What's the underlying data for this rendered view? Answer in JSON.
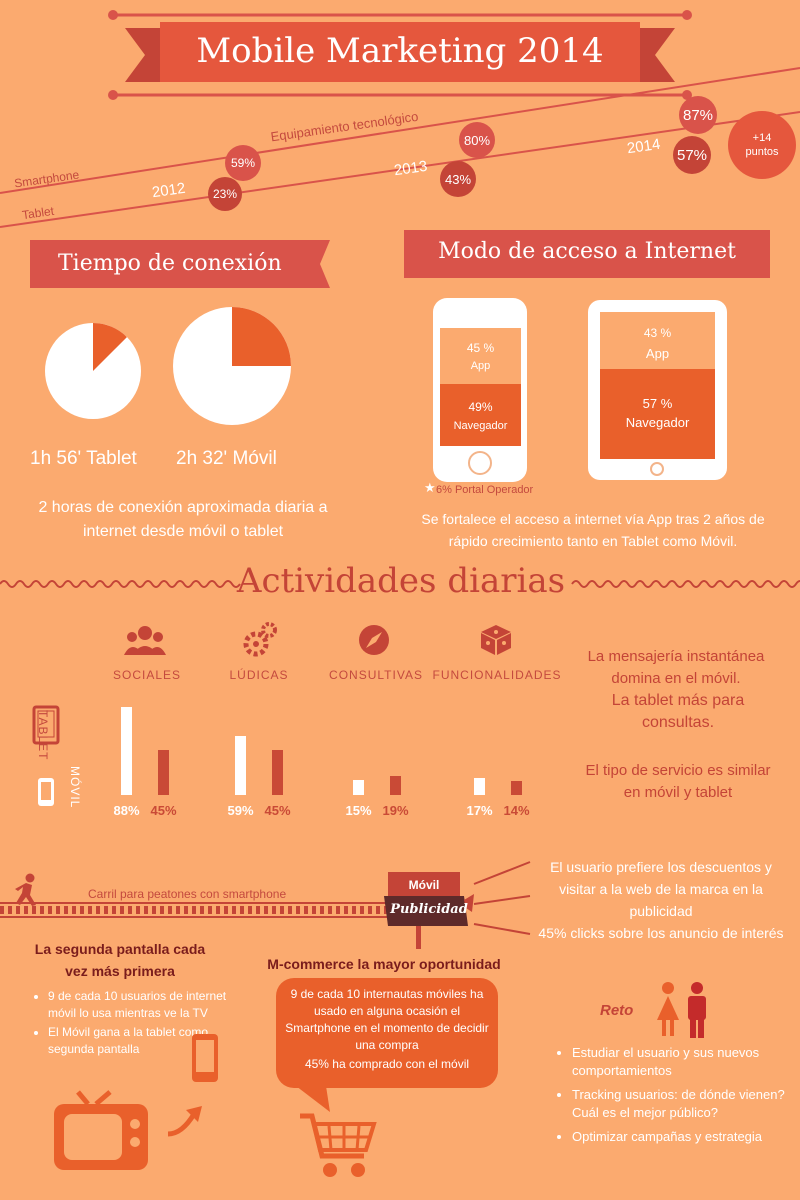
{
  "header": {
    "title": "Mobile Marketing 2014"
  },
  "equipment": {
    "title": "Equipamiento tecnológico",
    "smartphone_label": "Smartphone",
    "tablet_label": "Tablet",
    "years": [
      "2012",
      "2013",
      "2014"
    ],
    "smartphone_values": [
      "59%",
      "80%",
      "87%"
    ],
    "tablet_values": [
      "23%",
      "43%",
      "57%"
    ],
    "bonus": "+14 puntos"
  },
  "connection": {
    "title": "Tiempo de conexión",
    "tablet_label": "1h 56' Tablet",
    "mobile_label": "2h 32' Móvil",
    "tablet_fraction": 0.125,
    "mobile_fraction": 0.25,
    "summary": "2 horas de conexión aproximada diaria a internet desde móvil o tablet"
  },
  "access": {
    "title": "Modo de acceso a Internet",
    "phone_app": "45 %",
    "phone_app_label": "App",
    "phone_browser": "49%",
    "phone_browser_label": "Navegador",
    "tablet_app": "43 %",
    "tablet_app_label": "App",
    "tablet_browser": "57 %",
    "tablet_browser_label": "Navegador",
    "portal": "6% Portal Operador",
    "summary": "Se fortalece el acceso a internet vía App tras 2 años de rápido crecimiento tanto en Tablet como Móvil."
  },
  "activities": {
    "title": "Actividades diarias",
    "categories": [
      "SOCIALES",
      "LÚDICAS",
      "CONSULTIVAS",
      "FUNCIONALIDADES"
    ],
    "row_tablet": "TABLET",
    "row_mobile": "MÓVIL",
    "chart_data": {
      "type": "bar",
      "categories": [
        "SOCIALES",
        "LÚDICAS",
        "CONSULTIVAS",
        "FUNCIONALIDADES"
      ],
      "series": [
        {
          "values": [
            88,
            59,
            15,
            17
          ]
        },
        {
          "values": [
            45,
            45,
            19,
            14
          ]
        }
      ],
      "labels_a": [
        "88%",
        "59%",
        "15%",
        "17%"
      ],
      "labels_b": [
        "45%",
        "45%",
        "19%",
        "14%"
      ],
      "colors": [
        "#ffffff",
        "#c94a36"
      ]
    },
    "note1_a": "La mensajería instantánea domina en el móvil.",
    "note1_b": "La tablet más para consultas.",
    "note2": "El tipo de servicio es similar en móvil y tablet"
  },
  "advertising": {
    "lane": "Carril para peatones con smartphone",
    "sign_top": "Móvil",
    "sign_bottom": "Publicidad",
    "note": "El usuario prefiere los descuentos y visitar a la web de la marca en la publicidad",
    "note2": "45% clicks sobre los anuncio de interés"
  },
  "second_screen": {
    "title": "La segunda pantalla cada vez más primera",
    "bullets": [
      "9 de cada 10 usuarios de internet móvil lo usa mientras ve la TV",
      "El Móvil gana a la tablet como segunda pantalla"
    ]
  },
  "mcommerce": {
    "title": "M-commerce la mayor oportunidad",
    "body": "9 de cada 10 internautas móviles ha usado en alguna ocasión el Smartphone en el momento de decidir una compra",
    "body2": "45% ha comprado con el móvil"
  },
  "challenge": {
    "title": "Reto",
    "bullets": [
      "Estudiar el usuario y sus nuevos comportamientos",
      "Tracking usuarios: de dónde vienen? Cuál es el mejor público?",
      "Optimizar campañas y estrategia"
    ]
  },
  "colors": {
    "background": "#fbaa6f",
    "accent": "#d9534a",
    "orange": "#e9602b",
    "dark": "#7a3430"
  }
}
